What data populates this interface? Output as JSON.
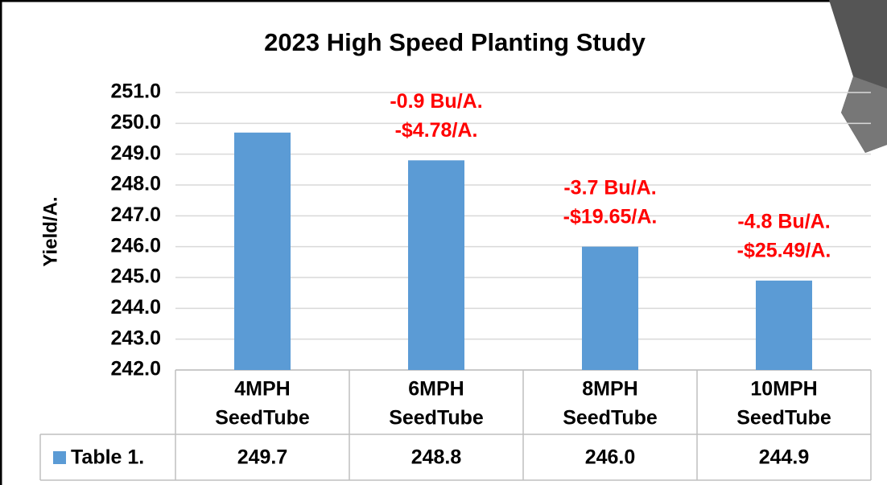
{
  "chart_data": {
    "type": "bar",
    "title": "2023 High Speed Planting Study",
    "y_label": "Yield/A.",
    "categories": [
      [
        "4MPH",
        "SeedTube"
      ],
      [
        "6MPH",
        "SeedTube"
      ],
      [
        "8MPH",
        "SeedTube"
      ],
      [
        "10MPH",
        "SeedTube"
      ]
    ],
    "series": [
      {
        "name": "Table 1.",
        "color": "#5b9bd5",
        "values": [
          249.7,
          248.8,
          246.0,
          244.9
        ],
        "value_labels": [
          "249.7",
          "248.8",
          "246.0",
          "244.9"
        ]
      }
    ],
    "annotations": [
      null,
      [
        "-0.9 Bu/A.",
        "-$4.78/A."
      ],
      [
        "-3.7 Bu/A.",
        "-$19.65/A."
      ],
      [
        "-4.8 Bu/A.",
        "-$25.49/A."
      ]
    ],
    "annotation_color": "#ff0000",
    "ylim": [
      242,
      251
    ],
    "yticks": [
      {
        "value": 242,
        "label": "242.0"
      },
      {
        "value": 243,
        "label": "243.0"
      },
      {
        "value": 244,
        "label": "244.0"
      },
      {
        "value": 245,
        "label": "245.0"
      },
      {
        "value": 246,
        "label": "246.0"
      },
      {
        "value": 247,
        "label": "247.0"
      },
      {
        "value": 248,
        "label": "248.0"
      },
      {
        "value": 249,
        "label": "249.0"
      },
      {
        "value": 250,
        "label": "250.0"
      },
      {
        "value": 251,
        "label": "251.0"
      }
    ],
    "grid": true
  }
}
